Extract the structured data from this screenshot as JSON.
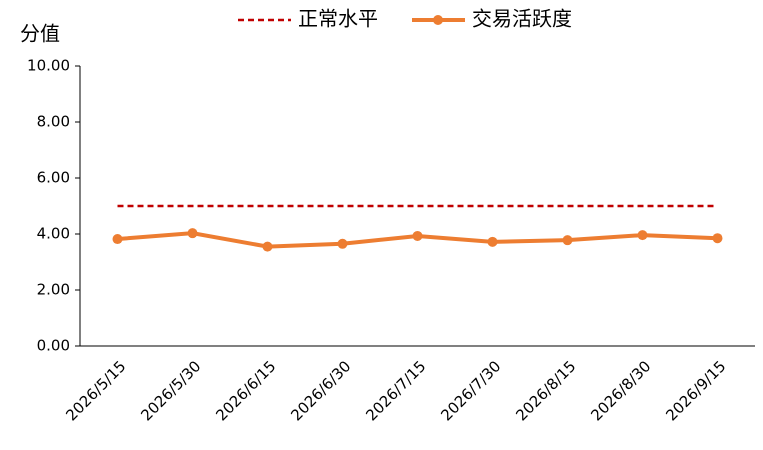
{
  "chart_data": {
    "type": "line",
    "y_label": "分值",
    "categories": [
      "2026/5/15",
      "2026/5/30",
      "2026/6/15",
      "2026/6/30",
      "2026/7/15",
      "2026/7/30",
      "2026/8/15",
      "2026/8/30",
      "2026/9/15"
    ],
    "series": [
      {
        "name": "正常水平",
        "color": "#c00000",
        "dashed": true,
        "markers": false,
        "values": [
          5,
          5,
          5,
          5,
          5,
          5,
          5,
          5,
          5
        ]
      },
      {
        "name": "交易活跃度",
        "color": "#ed7d31",
        "dashed": false,
        "markers": true,
        "values": [
          3.82,
          4.03,
          3.55,
          3.65,
          3.93,
          3.72,
          3.78,
          3.96,
          3.85
        ]
      }
    ],
    "ylim": [
      0,
      10
    ],
    "yticks": [
      {
        "value": 0,
        "label": "0.00"
      },
      {
        "value": 2,
        "label": "2.00"
      },
      {
        "value": 4,
        "label": "4.00"
      },
      {
        "value": 6,
        "label": "6.00"
      },
      {
        "value": 8,
        "label": "8.00"
      },
      {
        "value": 10,
        "label": "10.00"
      }
    ],
    "grid": false
  }
}
